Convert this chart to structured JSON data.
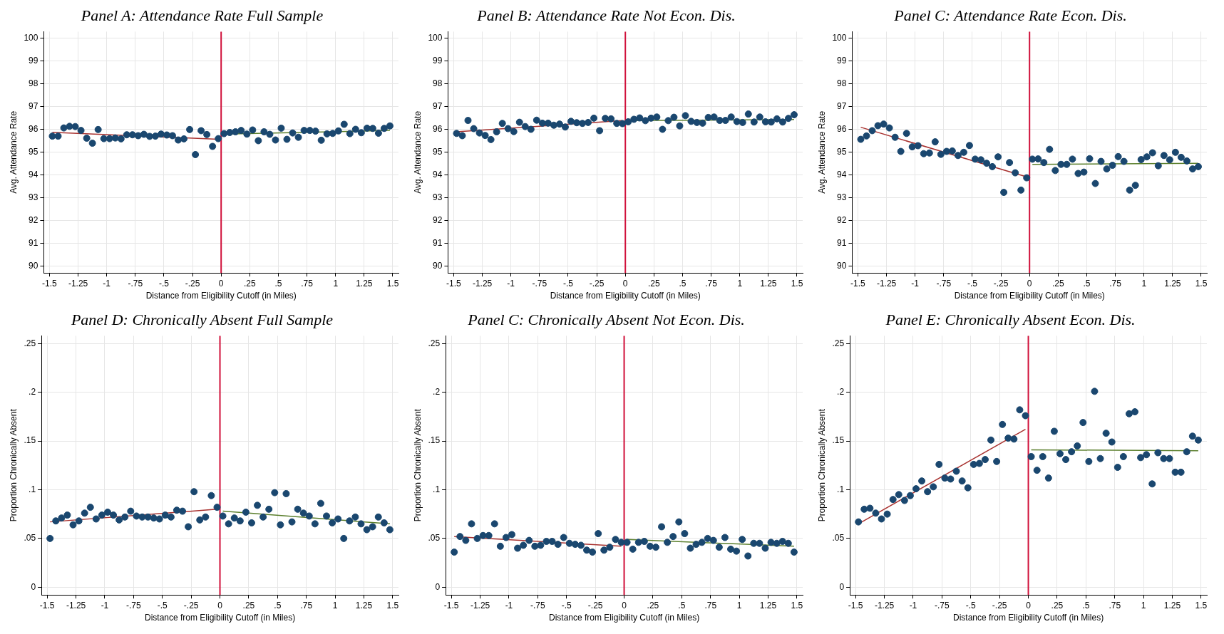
{
  "chart_data": [
    {
      "type": "scatter",
      "title": "Panel A: Attendance Rate Full Sample",
      "xlabel": "Distance from Eligibility Cutoff (in Miles)",
      "ylabel": "Avg. Attendance Rate",
      "grid": true,
      "legend": false,
      "x": [
        -1.475,
        -1.425,
        -1.375,
        -1.325,
        -1.275,
        -1.225,
        -1.175,
        -1.125,
        -1.075,
        -1.025,
        -0.975,
        -0.925,
        -0.875,
        -0.825,
        -0.775,
        -0.725,
        -0.675,
        -0.625,
        -0.575,
        -0.525,
        -0.475,
        -0.425,
        -0.375,
        -0.325,
        -0.275,
        -0.225,
        -0.175,
        -0.125,
        -0.075,
        -0.025,
        0.025,
        0.075,
        0.125,
        0.175,
        0.225,
        0.275,
        0.325,
        0.375,
        0.425,
        0.475,
        0.525,
        0.575,
        0.625,
        0.675,
        0.725,
        0.775,
        0.825,
        0.875,
        0.925,
        0.975,
        1.025,
        1.075,
        1.125,
        1.175,
        1.225,
        1.275,
        1.325,
        1.375,
        1.425,
        1.475
      ],
      "xlim": [
        -1.55,
        1.55
      ],
      "xticks": [
        -1.5,
        {
          "value": -1.25,
          "label": "-1.25"
        },
        -1,
        {
          "value": -0.75,
          "label": "-.75"
        },
        {
          "value": -0.5,
          "label": "-.5"
        },
        {
          "value": -0.25,
          "label": "-.25"
        },
        0,
        {
          "value": 0.25,
          "label": ".25"
        },
        {
          "value": 0.5,
          "label": ".5"
        },
        {
          "value": 0.75,
          "label": ".75"
        },
        1,
        1.25,
        1.5
      ],
      "ylim": [
        89.7,
        100.3
      ],
      "yticks": [
        90,
        91,
        92,
        93,
        94,
        95,
        96,
        97,
        98,
        99,
        100
      ],
      "ref_lines": [
        {
          "axis": "x",
          "value": 0,
          "color": "#d0103a"
        }
      ],
      "series": [
        {
          "marker": "circle",
          "color": "#1a476f",
          "values": [
            95.71,
            95.71,
            96.07,
            96.14,
            96.13,
            95.96,
            95.62,
            95.4,
            96.0,
            95.6,
            95.6,
            95.63,
            95.59,
            95.77,
            95.77,
            95.73,
            95.79,
            95.7,
            95.71,
            95.8,
            95.76,
            95.73,
            95.54,
            95.59,
            96.0,
            94.9,
            95.95,
            95.78,
            95.26,
            95.6,
            95.82,
            95.87,
            95.9,
            95.96,
            95.8,
            95.98,
            95.51,
            95.9,
            95.79,
            95.54,
            96.06,
            95.57,
            95.85,
            95.66,
            95.96,
            95.96,
            95.93,
            95.53,
            95.81,
            95.83,
            95.94,
            96.23,
            95.82,
            96.01,
            95.86,
            96.06,
            96.05,
            95.84,
            96.05,
            96.16
          ]
        },
        {
          "type": "line",
          "marker": "none",
          "color": "#a8312f",
          "x": [
            -1.475,
            -0.025
          ],
          "values": [
            95.88,
            95.57
          ]
        },
        {
          "type": "line",
          "marker": "none",
          "color": "#5b7f2d",
          "x": [
            0.025,
            1.475
          ],
          "values": [
            95.8,
            95.96
          ]
        }
      ]
    },
    {
      "type": "scatter",
      "title": "Panel B: Attendance Rate Not Econ. Dis.",
      "xlabel": "Distance from Eligibility Cutoff (in Miles)",
      "ylabel": "Avg. Attendance Rate",
      "grid": true,
      "legend": false,
      "x": [
        -1.475,
        -1.425,
        -1.375,
        -1.325,
        -1.275,
        -1.225,
        -1.175,
        -1.125,
        -1.075,
        -1.025,
        -0.975,
        -0.925,
        -0.875,
        -0.825,
        -0.775,
        -0.725,
        -0.675,
        -0.625,
        -0.575,
        -0.525,
        -0.475,
        -0.425,
        -0.375,
        -0.325,
        -0.275,
        -0.225,
        -0.175,
        -0.125,
        -0.075,
        -0.025,
        0.025,
        0.075,
        0.125,
        0.175,
        0.225,
        0.275,
        0.325,
        0.375,
        0.425,
        0.475,
        0.525,
        0.575,
        0.625,
        0.675,
        0.725,
        0.775,
        0.825,
        0.875,
        0.925,
        0.975,
        1.025,
        1.075,
        1.125,
        1.175,
        1.225,
        1.275,
        1.325,
        1.375,
        1.425,
        1.475
      ],
      "xlim": [
        -1.55,
        1.55
      ],
      "xticks": [
        -1.5,
        {
          "value": -1.25,
          "label": "-1.25"
        },
        -1,
        {
          "value": -0.75,
          "label": "-.75"
        },
        {
          "value": -0.5,
          "label": "-.5"
        },
        {
          "value": -0.25,
          "label": "-.25"
        },
        0,
        {
          "value": 0.25,
          "label": ".25"
        },
        {
          "value": 0.5,
          "label": ".5"
        },
        {
          "value": 0.75,
          "label": ".75"
        },
        1,
        1.25,
        1.5
      ],
      "ylim": [
        89.7,
        100.3
      ],
      "yticks": [
        90,
        91,
        92,
        93,
        94,
        95,
        96,
        97,
        98,
        99,
        100
      ],
      "ref_lines": [
        {
          "axis": "x",
          "value": 0,
          "color": "#d0103a"
        }
      ],
      "series": [
        {
          "marker": "circle",
          "color": "#1a476f",
          "values": [
            95.83,
            95.73,
            96.4,
            96.04,
            95.85,
            95.74,
            95.56,
            95.9,
            96.27,
            96.04,
            95.91,
            96.32,
            96.13,
            96.01,
            96.41,
            96.28,
            96.28,
            96.19,
            96.24,
            96.11,
            96.36,
            96.3,
            96.27,
            96.31,
            96.5,
            95.95,
            96.49,
            96.47,
            96.27,
            96.26,
            96.34,
            96.45,
            96.51,
            96.39,
            96.5,
            96.55,
            96.01,
            96.39,
            96.54,
            96.16,
            96.61,
            96.36,
            96.31,
            96.28,
            96.53,
            96.55,
            96.4,
            96.4,
            96.55,
            96.35,
            96.31,
            96.68,
            96.33,
            96.55,
            96.34,
            96.33,
            96.47,
            96.33,
            96.49,
            96.65
          ]
        },
        {
          "type": "line",
          "marker": "none",
          "color": "#a8312f",
          "x": [
            -1.475,
            -0.025
          ],
          "values": [
            95.9,
            96.39
          ]
        },
        {
          "type": "line",
          "marker": "none",
          "color": "#5b7f2d",
          "x": [
            0.025,
            1.475
          ],
          "values": [
            96.39,
            96.44
          ]
        }
      ]
    },
    {
      "type": "scatter",
      "title": "Panel C: Attendance Rate Econ. Dis.",
      "xlabel": "Distance from Eligibility Cutoff (in Miles)",
      "ylabel": "Avg. Attendance Rate",
      "grid": true,
      "legend": false,
      "x": [
        -1.475,
        -1.425,
        -1.375,
        -1.325,
        -1.275,
        -1.225,
        -1.175,
        -1.125,
        -1.075,
        -1.025,
        -0.975,
        -0.925,
        -0.875,
        -0.825,
        -0.775,
        -0.725,
        -0.675,
        -0.625,
        -0.575,
        -0.525,
        -0.475,
        -0.425,
        -0.375,
        -0.325,
        -0.275,
        -0.225,
        -0.175,
        -0.125,
        -0.075,
        -0.025,
        0.025,
        0.075,
        0.125,
        0.175,
        0.225,
        0.275,
        0.325,
        0.375,
        0.425,
        0.475,
        0.525,
        0.575,
        0.625,
        0.675,
        0.725,
        0.775,
        0.825,
        0.875,
        0.925,
        0.975,
        1.025,
        1.075,
        1.125,
        1.175,
        1.225,
        1.275,
        1.325,
        1.375,
        1.425,
        1.475
      ],
      "xlim": [
        -1.55,
        1.55
      ],
      "xticks": [
        -1.5,
        {
          "value": -1.25,
          "label": "-1.25"
        },
        -1,
        {
          "value": -0.75,
          "label": "-.75"
        },
        {
          "value": -0.5,
          "label": "-.5"
        },
        {
          "value": -0.25,
          "label": "-.25"
        },
        0,
        {
          "value": 0.25,
          "label": ".25"
        },
        {
          "value": 0.5,
          "label": ".5"
        },
        {
          "value": 0.75,
          "label": ".75"
        },
        1,
        1.25,
        1.5
      ],
      "ylim": [
        89.7,
        100.3
      ],
      "yticks": [
        90,
        91,
        92,
        93,
        94,
        95,
        96,
        97,
        98,
        99,
        100
      ],
      "ref_lines": [
        {
          "axis": "x",
          "value": 0,
          "color": "#d0103a"
        }
      ],
      "series": [
        {
          "marker": "circle",
          "color": "#1a476f",
          "values": [
            95.57,
            95.72,
            95.95,
            96.17,
            96.24,
            96.07,
            95.66,
            95.04,
            95.83,
            95.24,
            95.29,
            94.94,
            94.97,
            95.46,
            94.91,
            95.04,
            95.06,
            94.86,
            95.0,
            95.3,
            94.7,
            94.67,
            94.52,
            94.37,
            94.8,
            93.24,
            94.55,
            94.1,
            93.34,
            93.88,
            94.7,
            94.71,
            94.55,
            95.13,
            94.2,
            94.47,
            94.47,
            94.7,
            94.07,
            94.13,
            94.72,
            93.63,
            94.6,
            94.27,
            94.43,
            94.81,
            94.6,
            93.34,
            93.55,
            94.68,
            94.8,
            94.98,
            94.41,
            94.86,
            94.67,
            95.0,
            94.78,
            94.62,
            94.27,
            94.37
          ]
        },
        {
          "type": "line",
          "marker": "none",
          "color": "#a8312f",
          "x": [
            -1.475,
            -0.025
          ],
          "values": [
            96.1,
            93.92
          ]
        },
        {
          "type": "line",
          "marker": "none",
          "color": "#5b7f2d",
          "x": [
            0.025,
            1.475
          ],
          "values": [
            94.47,
            94.52
          ]
        }
      ]
    },
    {
      "type": "scatter",
      "title": "Panel D: Chronically Absent Full Sample",
      "xlabel": "Distance from Eligibility Cutoff (in Miles)",
      "ylabel": "Proportion Chronically Absent",
      "grid": true,
      "legend": false,
      "x": [
        -1.475,
        -1.425,
        -1.375,
        -1.325,
        -1.275,
        -1.225,
        -1.175,
        -1.125,
        -1.075,
        -1.025,
        -0.975,
        -0.925,
        -0.875,
        -0.825,
        -0.775,
        -0.725,
        -0.675,
        -0.625,
        -0.575,
        -0.525,
        -0.475,
        -0.425,
        -0.375,
        -0.325,
        -0.275,
        -0.225,
        -0.175,
        -0.125,
        -0.075,
        -0.025,
        0.025,
        0.075,
        0.125,
        0.175,
        0.225,
        0.275,
        0.325,
        0.375,
        0.425,
        0.475,
        0.525,
        0.575,
        0.625,
        0.675,
        0.725,
        0.775,
        0.825,
        0.875,
        0.925,
        0.975,
        1.025,
        1.075,
        1.125,
        1.175,
        1.225,
        1.275,
        1.325,
        1.375,
        1.425,
        1.475
      ],
      "xlim": [
        -1.55,
        1.55
      ],
      "xticks": [
        -1.5,
        {
          "value": -1.25,
          "label": "-1.25"
        },
        -1,
        {
          "value": -0.75,
          "label": "-.75"
        },
        {
          "value": -0.5,
          "label": "-.5"
        },
        {
          "value": -0.25,
          "label": "-.25"
        },
        0,
        {
          "value": 0.25,
          "label": ".25"
        },
        {
          "value": 0.5,
          "label": ".5"
        },
        {
          "value": 0.75,
          "label": ".75"
        },
        1,
        1.25,
        1.5
      ],
      "ylim": [
        -0.008,
        0.258
      ],
      "yticks": [
        0,
        {
          "value": 0.05,
          "label": ".05"
        },
        {
          "value": 0.1,
          "label": ".1"
        },
        {
          "value": 0.15,
          "label": ".15"
        },
        {
          "value": 0.2,
          "label": ".2"
        },
        {
          "value": 0.25,
          "label": ".25"
        }
      ],
      "ref_lines": [
        {
          "axis": "x",
          "value": 0,
          "color": "#d0103a"
        }
      ],
      "series": [
        {
          "marker": "circle",
          "color": "#1a476f",
          "values": [
            0.05,
            0.068,
            0.071,
            0.074,
            0.064,
            0.068,
            0.076,
            0.082,
            0.07,
            0.074,
            0.077,
            0.074,
            0.069,
            0.072,
            0.078,
            0.073,
            0.072,
            0.072,
            0.071,
            0.07,
            0.074,
            0.072,
            0.079,
            0.078,
            0.062,
            0.098,
            0.069,
            0.072,
            0.094,
            0.082,
            0.073,
            0.065,
            0.071,
            0.068,
            0.077,
            0.066,
            0.084,
            0.072,
            0.08,
            0.097,
            0.064,
            0.096,
            0.067,
            0.08,
            0.076,
            0.073,
            0.065,
            0.086,
            0.073,
            0.066,
            0.07,
            0.05,
            0.068,
            0.072,
            0.065,
            0.059,
            0.062,
            0.072,
            0.066,
            0.059
          ]
        },
        {
          "type": "line",
          "marker": "none",
          "color": "#a8312f",
          "x": [
            -1.475,
            -0.025
          ],
          "values": [
            0.067,
            0.08
          ]
        },
        {
          "type": "line",
          "marker": "none",
          "color": "#5b7f2d",
          "x": [
            0.025,
            1.475
          ],
          "values": [
            0.078,
            0.065
          ]
        }
      ]
    },
    {
      "type": "scatter",
      "title": "Panel C: Chronically Absent Not Econ. Dis.",
      "xlabel": "Distance from Eligibility Cutoff (in Miles)",
      "ylabel": "Proportion Chronically Absent",
      "grid": true,
      "legend": false,
      "x": [
        -1.475,
        -1.425,
        -1.375,
        -1.325,
        -1.275,
        -1.225,
        -1.175,
        -1.125,
        -1.075,
        -1.025,
        -0.975,
        -0.925,
        -0.875,
        -0.825,
        -0.775,
        -0.725,
        -0.675,
        -0.625,
        -0.575,
        -0.525,
        -0.475,
        -0.425,
        -0.375,
        -0.325,
        -0.275,
        -0.225,
        -0.175,
        -0.125,
        -0.075,
        -0.025,
        0.025,
        0.075,
        0.125,
        0.175,
        0.225,
        0.275,
        0.325,
        0.375,
        0.425,
        0.475,
        0.525,
        0.575,
        0.625,
        0.675,
        0.725,
        0.775,
        0.825,
        0.875,
        0.925,
        0.975,
        1.025,
        1.075,
        1.125,
        1.175,
        1.225,
        1.275,
        1.325,
        1.375,
        1.425,
        1.475
      ],
      "xlim": [
        -1.55,
        1.55
      ],
      "xticks": [
        -1.5,
        {
          "value": -1.25,
          "label": "-1.25"
        },
        -1,
        {
          "value": -0.75,
          "label": "-.75"
        },
        {
          "value": -0.5,
          "label": "-.5"
        },
        {
          "value": -0.25,
          "label": "-.25"
        },
        0,
        {
          "value": 0.25,
          "label": ".25"
        },
        {
          "value": 0.5,
          "label": ".5"
        },
        {
          "value": 0.75,
          "label": ".75"
        },
        1,
        1.25,
        1.5
      ],
      "ylim": [
        -0.008,
        0.258
      ],
      "yticks": [
        0,
        {
          "value": 0.05,
          "label": ".05"
        },
        {
          "value": 0.1,
          "label": ".1"
        },
        {
          "value": 0.15,
          "label": ".15"
        },
        {
          "value": 0.2,
          "label": ".2"
        },
        {
          "value": 0.25,
          "label": ".25"
        }
      ],
      "ref_lines": [
        {
          "axis": "x",
          "value": 0,
          "color": "#d0103a"
        }
      ],
      "series": [
        {
          "marker": "circle",
          "color": "#1a476f",
          "values": [
            0.036,
            0.052,
            0.048,
            0.065,
            0.05,
            0.053,
            0.053,
            0.065,
            0.042,
            0.051,
            0.054,
            0.04,
            0.043,
            0.048,
            0.042,
            0.043,
            0.047,
            0.047,
            0.044,
            0.051,
            0.045,
            0.044,
            0.043,
            0.038,
            0.036,
            0.055,
            0.038,
            0.041,
            0.049,
            0.046,
            0.046,
            0.039,
            0.046,
            0.047,
            0.042,
            0.041,
            0.062,
            0.046,
            0.052,
            0.067,
            0.055,
            0.04,
            0.044,
            0.046,
            0.05,
            0.048,
            0.041,
            0.051,
            0.039,
            0.037,
            0.049,
            0.032,
            0.045,
            0.045,
            0.04,
            0.046,
            0.045,
            0.047,
            0.045,
            0.036
          ]
        },
        {
          "type": "line",
          "marker": "none",
          "color": "#a8312f",
          "x": [
            -1.475,
            -0.025
          ],
          "values": [
            0.052,
            0.042
          ]
        },
        {
          "type": "line",
          "marker": "none",
          "color": "#5b7f2d",
          "x": [
            0.025,
            1.475
          ],
          "values": [
            0.049,
            0.042
          ]
        }
      ]
    },
    {
      "type": "scatter",
      "title": "Panel E: Chronically Absent Econ. Dis.",
      "xlabel": "Distance from Eligibility Cutoff (in Miles)",
      "ylabel": "Proportion Chronically Absent",
      "grid": true,
      "legend": false,
      "x": [
        -1.475,
        -1.425,
        -1.375,
        -1.325,
        -1.275,
        -1.225,
        -1.175,
        -1.125,
        -1.075,
        -1.025,
        -0.975,
        -0.925,
        -0.875,
        -0.825,
        -0.775,
        -0.725,
        -0.675,
        -0.625,
        -0.575,
        -0.525,
        -0.475,
        -0.425,
        -0.375,
        -0.325,
        -0.275,
        -0.225,
        -0.175,
        -0.125,
        -0.075,
        -0.025,
        0.025,
        0.075,
        0.125,
        0.175,
        0.225,
        0.275,
        0.325,
        0.375,
        0.425,
        0.475,
        0.525,
        0.575,
        0.625,
        0.675,
        0.725,
        0.775,
        0.825,
        0.875,
        0.925,
        0.975,
        1.025,
        1.075,
        1.125,
        1.175,
        1.225,
        1.275,
        1.325,
        1.375,
        1.425,
        1.475
      ],
      "xlim": [
        -1.55,
        1.55
      ],
      "xticks": [
        -1.5,
        {
          "value": -1.25,
          "label": "-1.25"
        },
        -1,
        {
          "value": -0.75,
          "label": "-.75"
        },
        {
          "value": -0.5,
          "label": "-.5"
        },
        {
          "value": -0.25,
          "label": "-.25"
        },
        0,
        {
          "value": 0.25,
          "label": ".25"
        },
        {
          "value": 0.5,
          "label": ".5"
        },
        {
          "value": 0.75,
          "label": ".75"
        },
        1,
        1.25,
        1.5
      ],
      "ylim": [
        -0.008,
        0.258
      ],
      "yticks": [
        0,
        {
          "value": 0.05,
          "label": ".05"
        },
        {
          "value": 0.1,
          "label": ".1"
        },
        {
          "value": 0.15,
          "label": ".15"
        },
        {
          "value": 0.2,
          "label": ".2"
        },
        {
          "value": 0.25,
          "label": ".25"
        }
      ],
      "ref_lines": [
        {
          "axis": "x",
          "value": 0,
          "color": "#d0103a"
        }
      ],
      "series": [
        {
          "marker": "circle",
          "color": "#1a476f",
          "values": [
            0.067,
            0.08,
            0.081,
            0.076,
            0.07,
            0.075,
            0.09,
            0.095,
            0.089,
            0.094,
            0.101,
            0.109,
            0.098,
            0.103,
            0.126,
            0.112,
            0.111,
            0.119,
            0.109,
            0.102,
            0.126,
            0.127,
            0.131,
            0.151,
            0.129,
            0.167,
            0.153,
            0.152,
            0.182,
            0.176,
            0.134,
            0.12,
            0.134,
            0.112,
            0.16,
            0.137,
            0.131,
            0.139,
            0.145,
            0.169,
            0.129,
            0.201,
            0.132,
            0.158,
            0.149,
            0.123,
            0.134,
            0.178,
            0.18,
            0.133,
            0.136,
            0.106,
            0.138,
            0.132,
            0.132,
            0.118,
            0.118,
            0.139,
            0.155,
            0.151
          ]
        },
        {
          "type": "line",
          "marker": "none",
          "color": "#a8312f",
          "x": [
            -1.475,
            -0.025
          ],
          "values": [
            0.065,
            0.162
          ]
        },
        {
          "type": "line",
          "marker": "none",
          "color": "#5b7f2d",
          "x": [
            0.025,
            1.475
          ],
          "values": [
            0.141,
            0.14
          ]
        }
      ]
    }
  ]
}
